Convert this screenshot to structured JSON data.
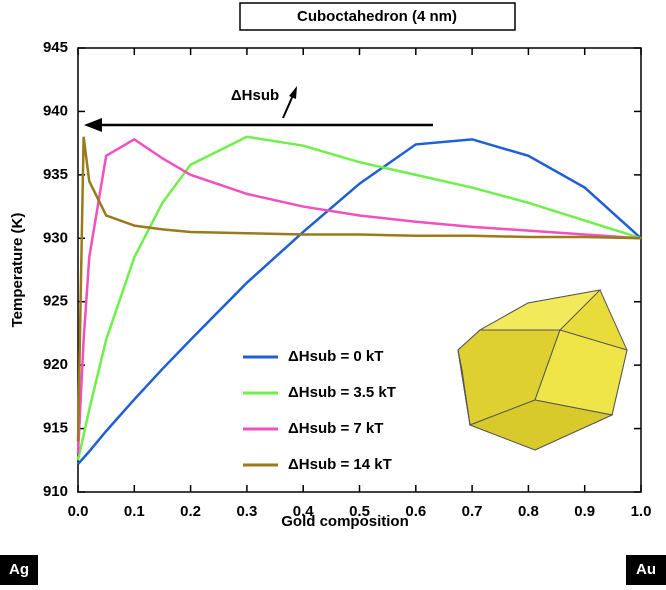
{
  "chart_data": {
    "type": "line",
    "title": "Cuboctahedron (4 nm)",
    "xlabel": "Gold composition",
    "ylabel": "Temperature (K)",
    "annotation": "ΔHsub",
    "left_label": "Ag",
    "right_label": "Au",
    "x": [
      0,
      0.01,
      0.02,
      0.05,
      0.1,
      0.15,
      0.2,
      0.3,
      0.4,
      0.5,
      0.6,
      0.7,
      0.8,
      0.9,
      1.0
    ],
    "series": [
      {
        "name": "ΔHsub = 0 kT",
        "color": "#1f5fd6",
        "values": [
          912.2,
          912.7,
          913.2,
          914.8,
          917.3,
          919.7,
          922,
          926.5,
          930.5,
          934.3,
          937.4,
          937.8,
          936.5,
          934,
          930
        ]
      },
      {
        "name": "ΔHsub = 3.5 kT",
        "color": "#6ef04a",
        "values": [
          912.5,
          914.5,
          916.5,
          922,
          928.5,
          932.8,
          935.8,
          938,
          937.3,
          936,
          935,
          934,
          932.8,
          931.4,
          930
        ]
      },
      {
        "name": "ΔHsub = 7 kT",
        "color": "#f050c0",
        "values": [
          913,
          922,
          928.5,
          936.5,
          937.8,
          936.3,
          935,
          933.5,
          932.5,
          931.8,
          931.3,
          930.9,
          930.6,
          930.3,
          930
        ]
      },
      {
        "name": "ΔHsub = 14 kT",
        "color": "#9a7a1a",
        "values": [
          914,
          938,
          934.5,
          931.8,
          931,
          930.7,
          930.5,
          930.4,
          930.3,
          930.3,
          930.2,
          930.2,
          930.1,
          930.1,
          930
        ]
      }
    ],
    "xlim": [
      0,
      1
    ],
    "ylim": [
      910,
      945
    ],
    "xticks": [
      {
        "value": 0,
        "label": "0.0"
      },
      0.1,
      0.2,
      0.3,
      0.4,
      0.5,
      0.6,
      0.7,
      0.8,
      0.9,
      {
        "value": 1,
        "label": "1.0"
      }
    ],
    "yticks": [
      910,
      915,
      920,
      925,
      930,
      935,
      940,
      945
    ]
  }
}
